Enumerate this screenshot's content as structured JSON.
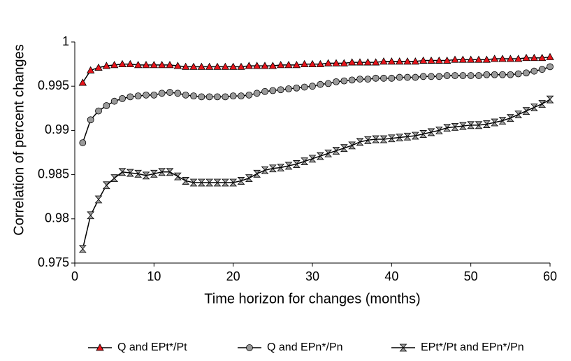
{
  "chart_data": {
    "type": "line",
    "xlabel": "Time horizon for changes (months)",
    "ylabel": "Correlation of percent changes",
    "x": [
      1,
      2,
      3,
      4,
      5,
      6,
      7,
      8,
      9,
      10,
      11,
      12,
      13,
      14,
      15,
      16,
      17,
      18,
      19,
      20,
      21,
      22,
      23,
      24,
      25,
      26,
      27,
      28,
      29,
      30,
      31,
      32,
      33,
      34,
      35,
      36,
      37,
      38,
      39,
      40,
      41,
      42,
      43,
      44,
      45,
      46,
      47,
      48,
      49,
      50,
      51,
      52,
      53,
      54,
      55,
      56,
      57,
      58,
      59,
      60
    ],
    "series": [
      {
        "name": "Q and EPt*/Pt",
        "color": "#e8141b",
        "marker": "triangle",
        "values": [
          0.9954,
          0.9968,
          0.9971,
          0.9973,
          0.9974,
          0.9975,
          0.9975,
          0.9974,
          0.9974,
          0.9974,
          0.9974,
          0.9974,
          0.9973,
          0.9972,
          0.9972,
          0.9972,
          0.9972,
          0.9972,
          0.9972,
          0.9972,
          0.9972,
          0.9973,
          0.9973,
          0.9973,
          0.9973,
          0.9974,
          0.9974,
          0.9974,
          0.9975,
          0.9975,
          0.9975,
          0.9976,
          0.9976,
          0.9976,
          0.9977,
          0.9977,
          0.9977,
          0.9977,
          0.9978,
          0.9978,
          0.9978,
          0.9978,
          0.9978,
          0.9979,
          0.9979,
          0.9979,
          0.9979,
          0.998,
          0.998,
          0.998,
          0.998,
          0.998,
          0.9981,
          0.9981,
          0.9981,
          0.9981,
          0.9982,
          0.9982,
          0.9982,
          0.9983
        ]
      },
      {
        "name": "Q and EPn*/Pn",
        "color": "#9a9a9a",
        "marker": "circle",
        "values": [
          0.9886,
          0.9912,
          0.9922,
          0.9928,
          0.9933,
          0.9936,
          0.9938,
          0.9939,
          0.994,
          0.994,
          0.9942,
          0.9943,
          0.9942,
          0.994,
          0.9939,
          0.9938,
          0.9938,
          0.9938,
          0.9938,
          0.9939,
          0.9939,
          0.994,
          0.9942,
          0.9944,
          0.9945,
          0.9946,
          0.9947,
          0.9948,
          0.9949,
          0.995,
          0.9952,
          0.9953,
          0.9955,
          0.9956,
          0.9957,
          0.9958,
          0.9958,
          0.9959,
          0.9959,
          0.9959,
          0.996,
          0.996,
          0.996,
          0.9961,
          0.9961,
          0.9961,
          0.9962,
          0.9962,
          0.9962,
          0.9962,
          0.9962,
          0.9963,
          0.9963,
          0.9963,
          0.9963,
          0.9964,
          0.9965,
          0.9967,
          0.9969,
          0.9972
        ]
      },
      {
        "name": "EPt*/Pt and EPn*/Pn",
        "color": "#9a9a9a",
        "marker": "hourglass",
        "values": [
          0.9766,
          0.9804,
          0.9822,
          0.9838,
          0.9846,
          0.9853,
          0.9852,
          0.9851,
          0.9849,
          0.9851,
          0.9853,
          0.9853,
          0.9848,
          0.9843,
          0.9841,
          0.9841,
          0.9841,
          0.9841,
          0.9841,
          0.9841,
          0.9843,
          0.9846,
          0.9851,
          0.9855,
          0.9857,
          0.9858,
          0.986,
          0.9862,
          0.9865,
          0.9868,
          0.9871,
          0.9874,
          0.9877,
          0.988,
          0.9883,
          0.9887,
          0.9889,
          0.989,
          0.989,
          0.9891,
          0.9892,
          0.9893,
          0.9894,
          0.9896,
          0.9898,
          0.99,
          0.9903,
          0.9904,
          0.9905,
          0.9906,
          0.9906,
          0.9907,
          0.9909,
          0.9911,
          0.9914,
          0.9918,
          0.9922,
          0.9926,
          0.993,
          0.9935
        ]
      }
    ],
    "xlim": [
      0,
      60
    ],
    "xticks": [
      0,
      10,
      20,
      30,
      40,
      50,
      60
    ],
    "ylim": [
      0.975,
      1
    ],
    "yticks": [
      0.975,
      0.98,
      0.985,
      0.99,
      0.995,
      1
    ],
    "grid": false,
    "legend": "bottom"
  }
}
